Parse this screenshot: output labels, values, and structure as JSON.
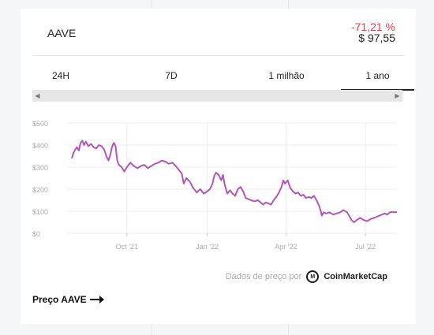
{
  "coin": {
    "symbol": "AAVE",
    "change": "-71,21 %",
    "price": "$ 97,55"
  },
  "tabs": [
    {
      "label": "24H"
    },
    {
      "label": "7D"
    },
    {
      "label": "1 milhão"
    },
    {
      "label": "1 ano",
      "active": true
    }
  ],
  "scrollbar": {
    "left_icon": "arrow-left-icon",
    "right_icon": "arrow-right-icon"
  },
  "chart_data": {
    "type": "line",
    "line_color": "#b156b4",
    "grid": true,
    "ylim": [
      0,
      500
    ],
    "y_ticks": [
      "$0",
      "$100",
      "$200",
      "$300",
      "$400",
      "$500"
    ],
    "x_ticks": [
      "Oct '21",
      "Jan '22",
      "Apr '22",
      "Jul '22"
    ],
    "series": [
      {
        "points": [
          [
            "2021-07-30",
            340
          ],
          [
            "2021-08-01",
            365
          ],
          [
            "2021-08-03",
            380
          ],
          [
            "2021-08-05",
            390
          ],
          [
            "2021-08-07",
            375
          ],
          [
            "2021-08-09",
            410
          ],
          [
            "2021-08-11",
            420
          ],
          [
            "2021-08-13",
            400
          ],
          [
            "2021-08-15",
            415
          ],
          [
            "2021-08-18",
            395
          ],
          [
            "2021-08-21",
            405
          ],
          [
            "2021-08-24",
            390
          ],
          [
            "2021-08-27",
            385
          ],
          [
            "2021-08-30",
            400
          ],
          [
            "2021-09-02",
            395
          ],
          [
            "2021-09-05",
            380
          ],
          [
            "2021-09-08",
            345
          ],
          [
            "2021-09-10",
            330
          ],
          [
            "2021-09-12",
            355
          ],
          [
            "2021-09-14",
            390
          ],
          [
            "2021-09-16",
            410
          ],
          [
            "2021-09-18",
            395
          ],
          [
            "2021-09-20",
            330
          ],
          [
            "2021-09-22",
            310
          ],
          [
            "2021-09-25",
            300
          ],
          [
            "2021-09-28",
            280
          ],
          [
            "2021-10-01",
            300
          ],
          [
            "2021-10-05",
            320
          ],
          [
            "2021-10-09",
            305
          ],
          [
            "2021-10-13",
            295
          ],
          [
            "2021-10-17",
            305
          ],
          [
            "2021-10-21",
            310
          ],
          [
            "2021-10-25",
            295
          ],
          [
            "2021-10-29",
            305
          ],
          [
            "2021-11-02",
            315
          ],
          [
            "2021-11-06",
            320
          ],
          [
            "2021-11-10",
            330
          ],
          [
            "2021-11-14",
            325
          ],
          [
            "2021-11-18",
            315
          ],
          [
            "2021-11-22",
            320
          ],
          [
            "2021-11-26",
            305
          ],
          [
            "2021-11-30",
            285
          ],
          [
            "2021-12-03",
            270
          ],
          [
            "2021-12-05",
            225
          ],
          [
            "2021-12-08",
            250
          ],
          [
            "2021-12-12",
            235
          ],
          [
            "2021-12-16",
            205
          ],
          [
            "2021-12-20",
            185
          ],
          [
            "2021-12-24",
            200
          ],
          [
            "2021-12-28",
            180
          ],
          [
            "2022-01-01",
            190
          ],
          [
            "2022-01-04",
            200
          ],
          [
            "2022-01-07",
            225
          ],
          [
            "2022-01-09",
            260
          ],
          [
            "2022-01-11",
            275
          ],
          [
            "2022-01-14",
            265
          ],
          [
            "2022-01-17",
            240
          ],
          [
            "2022-01-19",
            265
          ],
          [
            "2022-01-21",
            220
          ],
          [
            "2022-01-24",
            180
          ],
          [
            "2022-01-27",
            195
          ],
          [
            "2022-01-30",
            180
          ],
          [
            "2022-02-02",
            170
          ],
          [
            "2022-02-05",
            200
          ],
          [
            "2022-02-08",
            210
          ],
          [
            "2022-02-11",
            190
          ],
          [
            "2022-02-14",
            160
          ],
          [
            "2022-02-17",
            155
          ],
          [
            "2022-02-20",
            150
          ],
          [
            "2022-02-24",
            145
          ],
          [
            "2022-02-28",
            150
          ],
          [
            "2022-03-03",
            140
          ],
          [
            "2022-03-06",
            130
          ],
          [
            "2022-03-09",
            140
          ],
          [
            "2022-03-12",
            135
          ],
          [
            "2022-03-15",
            130
          ],
          [
            "2022-03-18",
            150
          ],
          [
            "2022-03-21",
            165
          ],
          [
            "2022-03-24",
            185
          ],
          [
            "2022-03-27",
            210
          ],
          [
            "2022-03-29",
            240
          ],
          [
            "2022-03-31",
            225
          ],
          [
            "2022-04-03",
            240
          ],
          [
            "2022-04-06",
            205
          ],
          [
            "2022-04-09",
            190
          ],
          [
            "2022-04-12",
            180
          ],
          [
            "2022-04-15",
            185
          ],
          [
            "2022-04-18",
            170
          ],
          [
            "2022-04-21",
            175
          ],
          [
            "2022-04-24",
            160
          ],
          [
            "2022-04-27",
            165
          ],
          [
            "2022-04-30",
            160
          ],
          [
            "2022-05-03",
            170
          ],
          [
            "2022-05-06",
            150
          ],
          [
            "2022-05-09",
            125
          ],
          [
            "2022-05-11",
            100
          ],
          [
            "2022-05-12",
            80
          ],
          [
            "2022-05-14",
            95
          ],
          [
            "2022-05-17",
            90
          ],
          [
            "2022-05-21",
            95
          ],
          [
            "2022-05-25",
            85
          ],
          [
            "2022-05-29",
            90
          ],
          [
            "2022-06-02",
            95
          ],
          [
            "2022-06-06",
            105
          ],
          [
            "2022-06-10",
            95
          ],
          [
            "2022-06-13",
            75
          ],
          [
            "2022-06-15",
            60
          ],
          [
            "2022-06-18",
            50
          ],
          [
            "2022-06-21",
            60
          ],
          [
            "2022-06-25",
            70
          ],
          [
            "2022-06-29",
            60
          ],
          [
            "2022-07-03",
            55
          ],
          [
            "2022-07-07",
            65
          ],
          [
            "2022-07-11",
            70
          ],
          [
            "2022-07-14",
            75
          ],
          [
            "2022-07-17",
            80
          ],
          [
            "2022-07-20",
            85
          ],
          [
            "2022-07-23",
            90
          ],
          [
            "2022-07-26",
            85
          ],
          [
            "2022-07-29",
            95
          ],
          [
            "2022-08-01",
            97
          ],
          [
            "2022-08-04",
            95
          ],
          [
            "2022-08-06",
            97
          ]
        ]
      }
    ]
  },
  "attribution": {
    "prefix": "Dados de preço por",
    "logo_icon": "coinmarketcap-logo-icon",
    "brand": "CoinMarketCap"
  },
  "footer": {
    "link_label": "Preço AAVE",
    "arrow_icon": "arrow-right-icon"
  }
}
